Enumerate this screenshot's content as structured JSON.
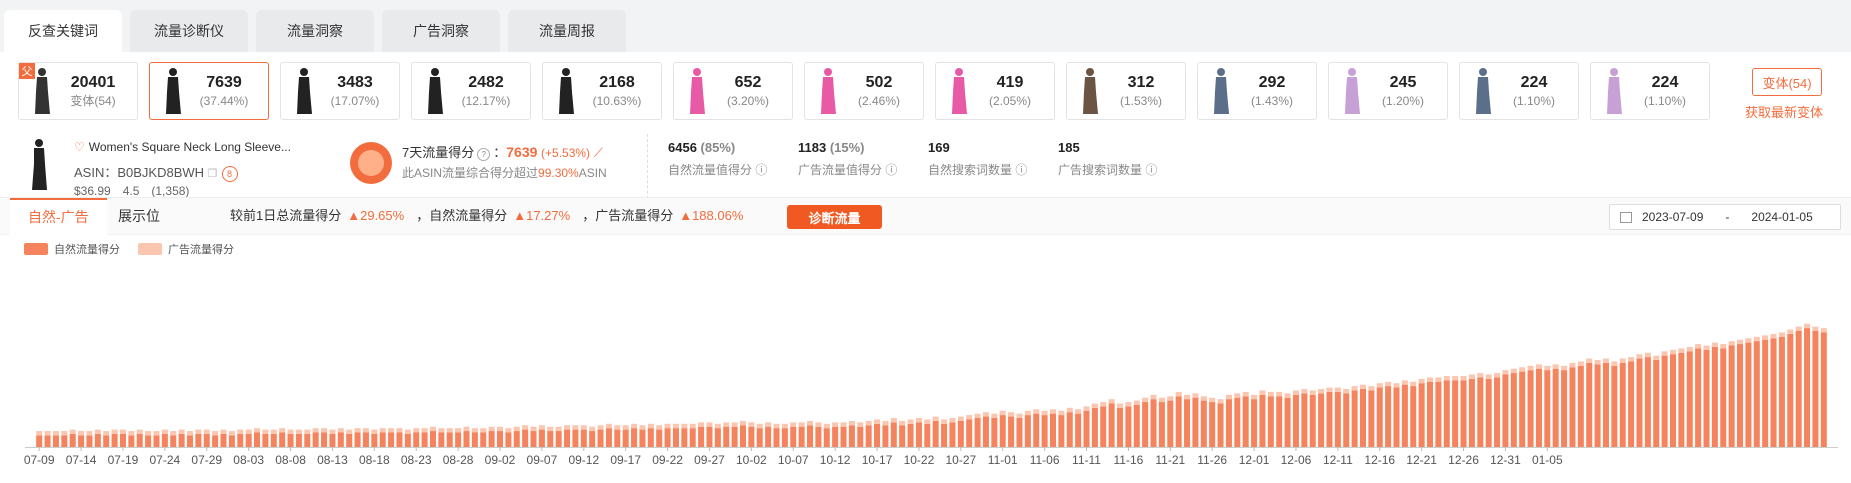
{
  "tabs": [
    "反查关键词",
    "流量诊断仪",
    "流量洞察",
    "广告洞察",
    "流量周报"
  ],
  "active_tab": 0,
  "variants": {
    "items": [
      {
        "num": "20401",
        "pct": "变体(54)",
        "color": "#333333",
        "corner": "父"
      },
      {
        "num": "7639",
        "pct": "(37.44%)",
        "color": "#222222",
        "selected": true
      },
      {
        "num": "3483",
        "pct": "(17.07%)",
        "color": "#222222"
      },
      {
        "num": "2482",
        "pct": "(12.17%)",
        "color": "#222222"
      },
      {
        "num": "2168",
        "pct": "(10.63%)",
        "color": "#222222"
      },
      {
        "num": "652",
        "pct": "(3.20%)",
        "color": "#e85aa6"
      },
      {
        "num": "502",
        "pct": "(2.46%)",
        "color": "#e85aa6"
      },
      {
        "num": "419",
        "pct": "(2.05%)",
        "color": "#e85aa6"
      },
      {
        "num": "312",
        "pct": "(1.53%)",
        "color": "#6b5444"
      },
      {
        "num": "292",
        "pct": "(1.43%)",
        "color": "#5b6f8a"
      },
      {
        "num": "245",
        "pct": "(1.20%)",
        "color": "#c7a0d6"
      },
      {
        "num": "224",
        "pct": "(1.10%)",
        "color": "#5b6f8a"
      },
      {
        "num": "224",
        "pct": "(1.10%)",
        "color": "#c7a0d6"
      }
    ],
    "variant_button": "变体(54)",
    "refresh_link": "获取最新变体"
  },
  "product": {
    "title": "Women's Square Neck Long Sleeve...",
    "asin_label": "ASIN：",
    "asin": "B0BJKD8BWH",
    "badge": "8",
    "price": "$36.99",
    "rating": "4.5",
    "reviews": "(1,358)"
  },
  "score": {
    "label": "7天流量得分",
    "help": "?",
    "value": "7639",
    "change": "(+5.53%)",
    "desc_prefix": "此ASIN流量综合得分超过",
    "desc_pct": "99.30%",
    "desc_suffix": "ASIN"
  },
  "stats": [
    {
      "value": "6456",
      "pct": "(85%)",
      "label": "自然流量值得分"
    },
    {
      "value": "1183",
      "pct": "(15%)",
      "label": "广告流量值得分"
    },
    {
      "value": "169",
      "pct": "",
      "label": "自然搜索词数量"
    },
    {
      "value": "185",
      "pct": "",
      "label": "广告搜索词数量"
    }
  ],
  "chart_tabs": [
    "自然-广告",
    "展示位"
  ],
  "compare": {
    "prefix": "较前1日总流量得分",
    "total": "29.65%",
    "natural_label": "，自然流量得分",
    "natural": "17.27%",
    "ad_label": "，广告流量得分",
    "ad": "188.06%"
  },
  "diagnose_button": "诊断流量",
  "date_range": {
    "start": "2023-07-09",
    "sep": "-",
    "end": "2024-01-05"
  },
  "colors": {
    "accent": "#f36c3d",
    "natural": "#f5845e",
    "ad": "#fbc6b0"
  },
  "chart_data": {
    "type": "bar",
    "stacked": true,
    "series": [
      {
        "name": "自然流量得分",
        "values": [
          8,
          8,
          8,
          8,
          9,
          8,
          8,
          9,
          8,
          9,
          9,
          8,
          9,
          8,
          8,
          9,
          8,
          9,
          8,
          9,
          9,
          8,
          9,
          8,
          9,
          9,
          10,
          9,
          9,
          10,
          9,
          9,
          9,
          10,
          10,
          9,
          10,
          9,
          10,
          10,
          9,
          10,
          10,
          10,
          9,
          10,
          10,
          11,
          10,
          10,
          10,
          11,
          10,
          10,
          11,
          11,
          10,
          11,
          12,
          11,
          12,
          11,
          11,
          12,
          12,
          12,
          11,
          12,
          13,
          12,
          12,
          13,
          12,
          13,
          12,
          13,
          13,
          13,
          13,
          14,
          14,
          13,
          14,
          14,
          15,
          14,
          13,
          14,
          13,
          13,
          14,
          14,
          15,
          14,
          13,
          14,
          14,
          15,
          14,
          15,
          16,
          15,
          17,
          15,
          16,
          17,
          16,
          18,
          16,
          17,
          18,
          19,
          20,
          21,
          20,
          22,
          21,
          20,
          22,
          23,
          22,
          23,
          22,
          24,
          23,
          25,
          27,
          28,
          30,
          27,
          28,
          29,
          31,
          33,
          31,
          32,
          35,
          33,
          34,
          32,
          31,
          30,
          33,
          34,
          35,
          33,
          36,
          35,
          35,
          34,
          36,
          37,
          36,
          37,
          38,
          38,
          37,
          39,
          40,
          39,
          41,
          42,
          41,
          43,
          42,
          44,
          45,
          45,
          46,
          46,
          46,
          47,
          48,
          47,
          48,
          50,
          51,
          52,
          53,
          54,
          53,
          54,
          53,
          55,
          56,
          58,
          57,
          58,
          56,
          58,
          59,
          61,
          62,
          60,
          63,
          64,
          65,
          66,
          68,
          67,
          69,
          68,
          70,
          71,
          72,
          73,
          74,
          75,
          76,
          78,
          80,
          82,
          80,
          79
        ]
      },
      {
        "name": "广告流量得分",
        "values": [
          3,
          3,
          3,
          3,
          3,
          3,
          3,
          3,
          3,
          3,
          3,
          3,
          3,
          3,
          3,
          3,
          3,
          3,
          3,
          3,
          3,
          3,
          3,
          3,
          3,
          3,
          3,
          3,
          3,
          3,
          3,
          3,
          3,
          3,
          3,
          3,
          3,
          3,
          3,
          3,
          3,
          3,
          3,
          3,
          3,
          3,
          3,
          3,
          3,
          3,
          3,
          3,
          3,
          3,
          3,
          3,
          3,
          3,
          3,
          3,
          3,
          3,
          3,
          3,
          3,
          3,
          3,
          3,
          3,
          3,
          3,
          3,
          3,
          3,
          3,
          3,
          3,
          3,
          3,
          3,
          3,
          3,
          3,
          3,
          3,
          3,
          3,
          3,
          3,
          3,
          3,
          3,
          3,
          3,
          3,
          3,
          3,
          3,
          3,
          3,
          3,
          3,
          3,
          3,
          3,
          3,
          3,
          3,
          3,
          3,
          3,
          3,
          3,
          3,
          3,
          3,
          3,
          3,
          3,
          3,
          3,
          3,
          3,
          3,
          3,
          3,
          3,
          3,
          3,
          3,
          3,
          3,
          3,
          3,
          3,
          3,
          3,
          3,
          3,
          3,
          3,
          3,
          3,
          3,
          3,
          3,
          3,
          3,
          3,
          3,
          3,
          3,
          3,
          3,
          3,
          3,
          3,
          3,
          3,
          3,
          3,
          3,
          3,
          3,
          3,
          3,
          3,
          3,
          3,
          3,
          3,
          3,
          3,
          3,
          3,
          3,
          3,
          3,
          3,
          3,
          3,
          3,
          3,
          3,
          3,
          3,
          3,
          3,
          3,
          3,
          3,
          3,
          3,
          3,
          3,
          3,
          3,
          3,
          3,
          3,
          3,
          3,
          3,
          3,
          3,
          3,
          3,
          3,
          3,
          3,
          3,
          3,
          3,
          3,
          3,
          3
        ]
      }
    ],
    "x_tick_labels": [
      "07-09",
      "07-14",
      "07-19",
      "07-24",
      "07-29",
      "08-03",
      "08-08",
      "08-13",
      "08-18",
      "08-23",
      "08-28",
      "09-02",
      "09-07",
      "09-12",
      "09-17",
      "09-22",
      "09-27",
      "10-02",
      "10-07",
      "10-12",
      "10-17",
      "10-22",
      "10-27",
      "11-01",
      "11-06",
      "11-11",
      "11-16",
      "11-21",
      "11-26",
      "12-01",
      "12-06",
      "12-11",
      "12-16",
      "12-21",
      "12-26",
      "12-31",
      "01-05"
    ],
    "x_tick_every": 5,
    "ylim": [
      0,
      120
    ],
    "legend": "top-left",
    "grid": false
  }
}
